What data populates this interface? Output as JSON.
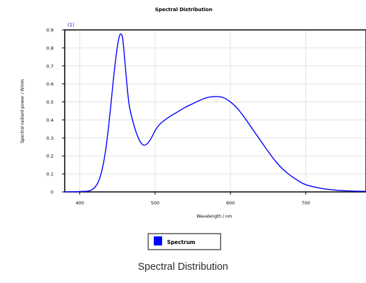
{
  "caption": "Spectral Distribution",
  "chart_data": {
    "type": "line",
    "title": "Spectral Distribution",
    "xlabel": "Wavelength / nm",
    "ylabel": "Spectral radiant power / W/nm",
    "xlim": [
      380,
      780
    ],
    "ylim": [
      0,
      0.9
    ],
    "x_ticks": [
      400,
      500,
      600,
      700
    ],
    "x_tick_labels": [
      "400",
      "500",
      "600",
      "700"
    ],
    "y_ticks": [
      0,
      0.1,
      0.2,
      0.3,
      0.4,
      0.5,
      0.6,
      0.7,
      0.8,
      0.9
    ],
    "y_tick_labels": [
      "0",
      "0.1",
      "0.2",
      "0.3",
      "0.4",
      "0.5",
      "0.6",
      "0.7",
      "0.8",
      "0.9"
    ],
    "grid": true,
    "legend_position": "bottom",
    "annotations": [
      "(1)"
    ],
    "series": [
      {
        "name": "Spectrum",
        "color": "#0000ff",
        "x": [
          380,
          400,
          410,
          415,
          420,
          425,
          430,
          435,
          440,
          445,
          450,
          453,
          455,
          457,
          460,
          465,
          470,
          475,
          480,
          485,
          490,
          495,
          500,
          505,
          510,
          520,
          530,
          540,
          550,
          560,
          570,
          580,
          590,
          600,
          610,
          620,
          630,
          640,
          650,
          660,
          670,
          680,
          690,
          700,
          720,
          740,
          760,
          780
        ],
        "y": [
          0,
          0.002,
          0.004,
          0.01,
          0.025,
          0.06,
          0.13,
          0.25,
          0.43,
          0.64,
          0.81,
          0.87,
          0.875,
          0.85,
          0.72,
          0.5,
          0.4,
          0.33,
          0.28,
          0.26,
          0.27,
          0.3,
          0.34,
          0.37,
          0.39,
          0.42,
          0.445,
          0.47,
          0.49,
          0.51,
          0.525,
          0.53,
          0.525,
          0.5,
          0.46,
          0.405,
          0.345,
          0.285,
          0.225,
          0.17,
          0.125,
          0.09,
          0.062,
          0.04,
          0.02,
          0.01,
          0.005,
          0.003
        ]
      }
    ]
  }
}
